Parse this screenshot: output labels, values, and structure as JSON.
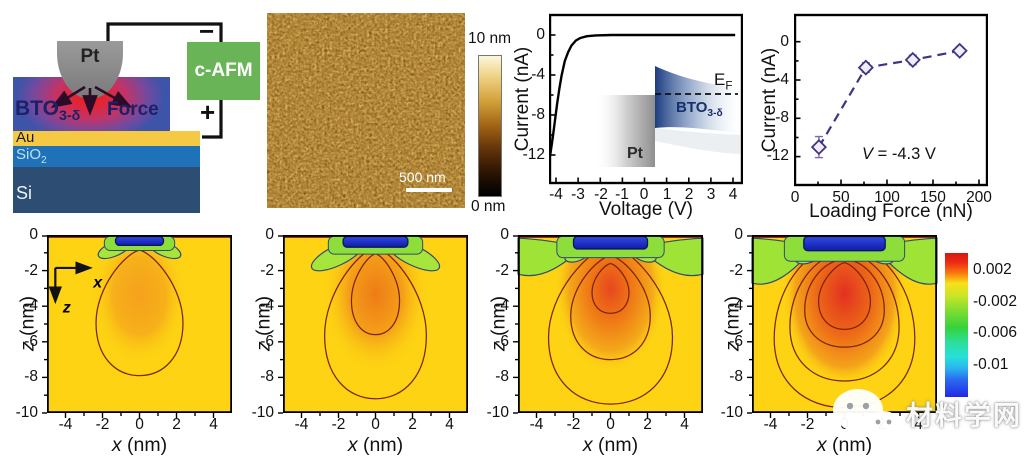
{
  "schematic": {
    "tip": "Pt",
    "force": "Force",
    "bto_main": "BTO",
    "bto_sub": "3-δ",
    "au": "Au",
    "sio2_main": "SiO",
    "sio2_sub": "2",
    "si": "Si",
    "box": "c-AFM",
    "minus": "−",
    "plus": "+",
    "colors": {
      "bto": "#3d54a8",
      "au": "#f6c945",
      "sio2": "#1f72b8",
      "si": "#2d4d72",
      "box": "#69b457",
      "tip_glow": "#ff1808"
    }
  },
  "afm": {
    "cb_top": "10 nm",
    "cb_bottom": "0 nm",
    "scalebar": "500 nm"
  },
  "iv": {
    "ylabel": "Current (nA)",
    "xlabel": "Voltage (V)",
    "yticks": [
      "0",
      "-4",
      "-8",
      "-12"
    ],
    "xticks": [
      "-4",
      "-3",
      "-2",
      "-1",
      "0",
      "1",
      "2",
      "3",
      "4"
    ],
    "inset": {
      "pt": "Pt",
      "bto": "BTO",
      "bto_sub": "3-δ",
      "ef": "E",
      "ef_sub": "F"
    }
  },
  "force": {
    "ylabel": "Current (nA)",
    "xlabel": "Loading Force (nN)",
    "yticks": [
      "0",
      "-4",
      "-8",
      "-12"
    ],
    "xticks": [
      "0",
      "50",
      "100",
      "150",
      "200"
    ],
    "note_v": "V",
    "note_rest": " = -4.3 V"
  },
  "contour": {
    "xl_i": "x",
    "xl_r": " (nm)",
    "zl_i": "z",
    "zl_r": " (nm)",
    "xticks": [
      "-4",
      "-2",
      "0",
      "2",
      "4"
    ],
    "zticks": [
      "0",
      "-2",
      "-4",
      "-6",
      "-8",
      "-10"
    ],
    "cb_ticks": [
      "0.002",
      "-0.002",
      "-0.006",
      "-0.01"
    ],
    "ax_x": "x",
    "ax_z": "z"
  },
  "watermark": "材料学网",
  "chart_data": [
    {
      "id": "iv_curve",
      "type": "line",
      "xlabel": "Voltage (V)",
      "ylabel": "Current (nA)",
      "xlim": [
        -4.5,
        4.5
      ],
      "ylim": [
        -13.5,
        0.8
      ],
      "x": [
        -4.3,
        -4.25,
        -4.15,
        -4.05,
        -3.95,
        -3.85,
        -3.75,
        -3.6,
        -3.45,
        -3.3,
        -3.1,
        -2.9,
        -2.6,
        -2.2,
        -1.5,
        0,
        2,
        4.1
      ],
      "y": [
        -12.4,
        -11.8,
        -10.3,
        -8.6,
        -6.9,
        -5.4,
        -4.1,
        -2.6,
        -1.7,
        -1.05,
        -0.55,
        -0.3,
        -0.12,
        -0.04,
        0,
        0,
        0,
        0
      ],
      "inset_labels": [
        "Pt",
        "BTO3-δ",
        "EF"
      ]
    },
    {
      "id": "current_vs_loading_force",
      "type": "scatter",
      "xlabel": "Loading Force (nN)",
      "ylabel": "Current (nA)",
      "xlim": [
        0,
        210
      ],
      "ylim": [
        -14,
        1
      ],
      "x": [
        26,
        77,
        128,
        179
      ],
      "y": [
        -11.0,
        -2.7,
        -1.9,
        -0.95
      ],
      "yerr": [
        1.1,
        0.5,
        0.5,
        0.4
      ],
      "marker": "diamond",
      "line_style": "dashed",
      "annotation": "V = -4.3 V"
    },
    {
      "id": "strain_field_maps",
      "type": "heatmap",
      "count": 4,
      "xlabel": "x (nm)",
      "ylabel": "z (nm)",
      "xlim": [
        -5,
        5
      ],
      "zlim": [
        -10,
        0
      ],
      "colorbar_ticks": [
        0.002,
        -0.002,
        -0.006,
        -0.01
      ],
      "colorbar_range": [
        0.004,
        -0.014
      ],
      "panels": [
        {
          "contour_rings": 1
        },
        {
          "contour_rings": 2
        },
        {
          "contour_rings": 3
        },
        {
          "contour_rings": 4
        }
      ],
      "note": "tensile (red/orange) lobe under tip grows from panel 1 to 4; compressive (green/blue) region at surface"
    }
  ]
}
